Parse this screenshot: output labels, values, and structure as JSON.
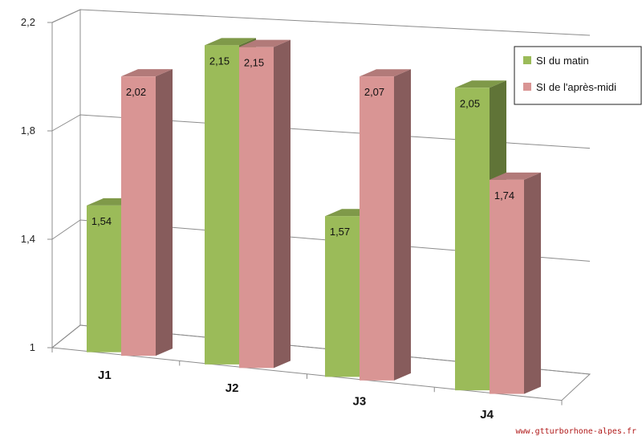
{
  "chart_data": {
    "type": "bar",
    "categories": [
      "J1",
      "J2",
      "J3",
      "J4"
    ],
    "series": [
      {
        "name": "SI du matin",
        "values": [
          1.54,
          2.15,
          1.57,
          2.05
        ]
      },
      {
        "name": "SI de l'après-midi",
        "values": [
          2.02,
          2.15,
          2.07,
          1.74
        ]
      }
    ],
    "data_labels": [
      [
        "1,54",
        "2,15",
        "1,57",
        "2,05"
      ],
      [
        "2,02",
        "2,15",
        "2,07",
        "1,74"
      ]
    ],
    "ylim": [
      1,
      2.2
    ],
    "y_ticks": [
      1,
      1.4,
      1.8,
      2.2
    ],
    "y_tick_labels": [
      "1",
      "1,4",
      "1,8",
      "2,2"
    ],
    "grid": true,
    "legend_position": "right",
    "perspective_3d": true,
    "colors": {
      "series": [
        "#9bbb59",
        "#d99594"
      ],
      "grid": "#8c8c8c"
    }
  },
  "watermark": "www.gtturborhone-alpes.fr"
}
